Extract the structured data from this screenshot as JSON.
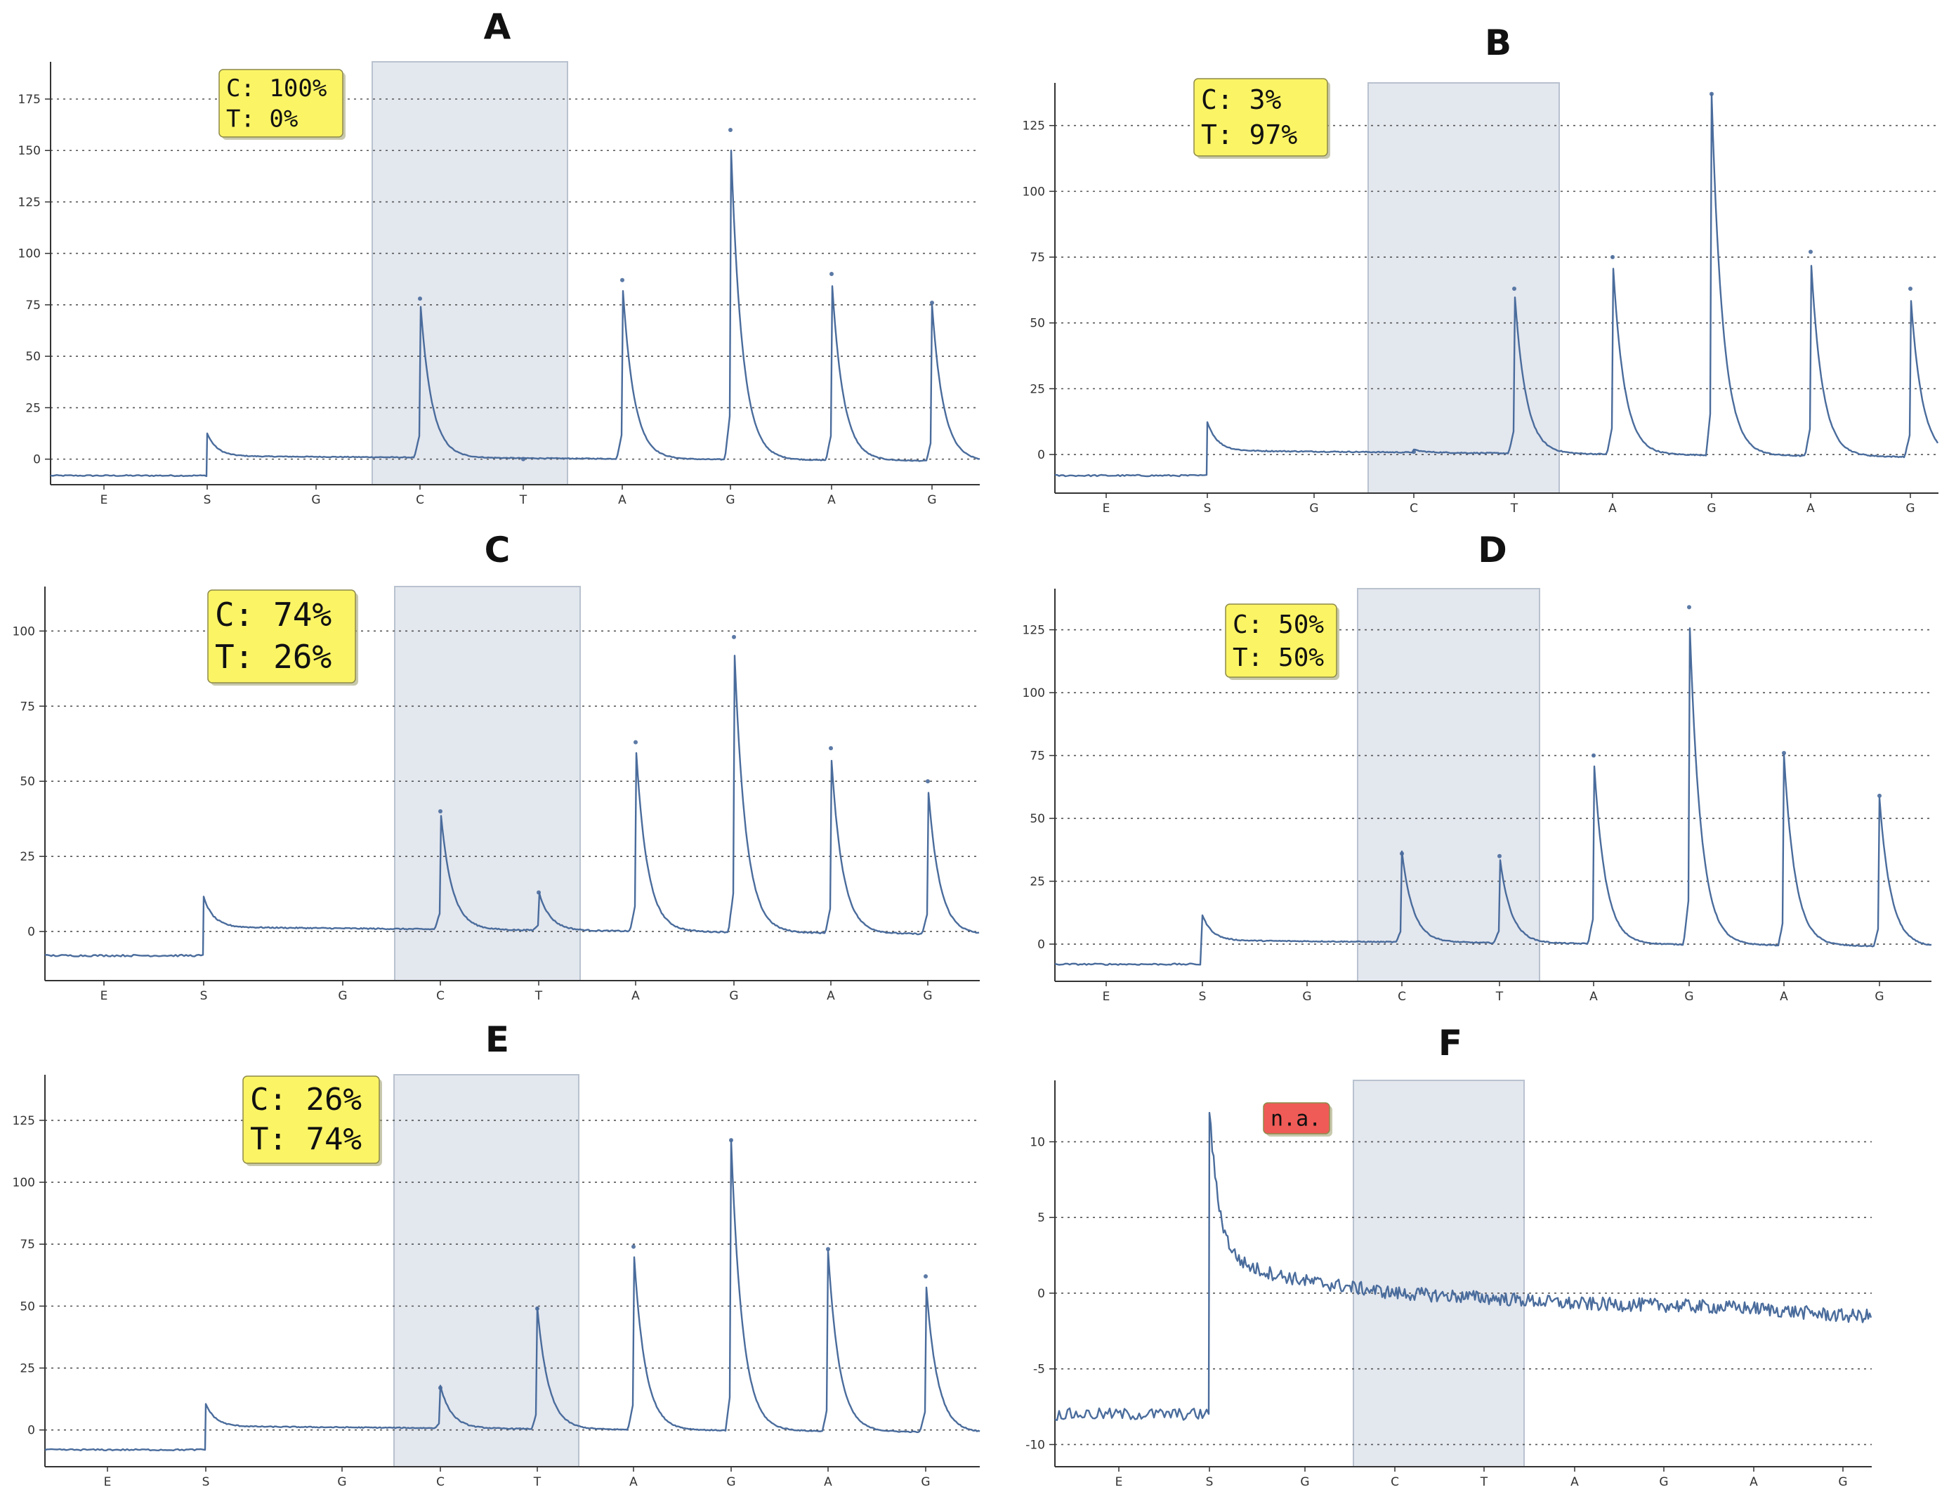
{
  "figure": {
    "style": {
      "trace_color": "#4a6c9c",
      "highlight_fill": "#e3e7ee",
      "highlight_stroke": "#b9c2cf",
      "grid_color": "#555555",
      "badge_yellow": "#fbf465",
      "badge_red": "#ef5b57"
    }
  },
  "chart_data": [
    {
      "type": "line",
      "panel": "A",
      "title": "A",
      "badge": {
        "lines": [
          "C: 100%",
          "T: 0%"
        ],
        "status": "yellow"
      },
      "yticks": [
        0,
        25,
        50,
        75,
        100,
        125,
        150,
        175
      ],
      "ylim": [
        -9,
        189
      ],
      "x_positions": [
        "E",
        "S",
        "G",
        "C",
        "T",
        "A",
        "G",
        "A",
        "G"
      ],
      "highlight": [
        "C",
        "T"
      ],
      "pre_baseline": -8,
      "step_peak": 12,
      "peaks": [
        {
          "base": "C",
          "value": 78
        },
        {
          "base": "T",
          "value": 0
        },
        {
          "base": "A",
          "value": 87
        },
        {
          "base": "G",
          "value": 160
        },
        {
          "base": "A",
          "value": 90
        },
        {
          "base": "G",
          "value": 76
        }
      ]
    },
    {
      "type": "line",
      "panel": "B",
      "title": "B",
      "badge": {
        "lines": [
          "C: 3%",
          "T: 97%"
        ],
        "status": "yellow"
      },
      "yticks": [
        0,
        25,
        50,
        75,
        100,
        125
      ],
      "ylim": [
        -12,
        138
      ],
      "x_positions": [
        "E",
        "S",
        "G",
        "C",
        "T",
        "A",
        "G",
        "A",
        "G"
      ],
      "highlight": [
        "C",
        "T"
      ],
      "pre_baseline": -8,
      "step_peak": 12,
      "peaks": [
        {
          "base": "C",
          "value": 1
        },
        {
          "base": "T",
          "value": 63
        },
        {
          "base": "A",
          "value": 75
        },
        {
          "base": "G",
          "value": 137
        },
        {
          "base": "A",
          "value": 77
        },
        {
          "base": "G",
          "value": 63
        }
      ]
    },
    {
      "type": "line",
      "panel": "C",
      "title": "C",
      "badge": {
        "lines": [
          "C: 74%",
          "T: 26%"
        ],
        "status": "yellow"
      },
      "yticks": [
        0,
        25,
        50,
        75,
        100
      ],
      "ylim": [
        -14,
        112
      ],
      "x_positions": [
        "E",
        "S",
        "G",
        "C",
        "T",
        "A",
        "G",
        "A",
        "G"
      ],
      "highlight": [
        "C",
        "T"
      ],
      "pre_baseline": -8,
      "step_peak": 11,
      "peaks": [
        {
          "base": "C",
          "value": 40
        },
        {
          "base": "T",
          "value": 13
        },
        {
          "base": "A",
          "value": 63
        },
        {
          "base": "G",
          "value": 98
        },
        {
          "base": "A",
          "value": 61
        },
        {
          "base": "G",
          "value": 50
        }
      ]
    },
    {
      "type": "line",
      "panel": "D",
      "title": "D",
      "badge": {
        "lines": [
          "C: 50%",
          "T: 50%"
        ],
        "status": "yellow"
      },
      "yticks": [
        0,
        25,
        50,
        75,
        100,
        125
      ],
      "ylim": [
        -12,
        138
      ],
      "x_positions": [
        "E",
        "S",
        "G",
        "C",
        "T",
        "A",
        "G",
        "A",
        "G"
      ],
      "highlight": [
        "C",
        "T"
      ],
      "pre_baseline": -8,
      "step_peak": 11,
      "peaks": [
        {
          "base": "C",
          "value": 36
        },
        {
          "base": "T",
          "value": 35
        },
        {
          "base": "A",
          "value": 75
        },
        {
          "base": "G",
          "value": 134
        },
        {
          "base": "A",
          "value": 76
        },
        {
          "base": "G",
          "value": 59
        }
      ]
    },
    {
      "type": "line",
      "panel": "E",
      "title": "E",
      "badge": {
        "lines": [
          "C: 26%",
          "T: 74%"
        ],
        "status": "yellow"
      },
      "yticks": [
        0,
        25,
        50,
        75,
        100,
        125
      ],
      "ylim": [
        -12,
        140
      ],
      "x_positions": [
        "E",
        "S",
        "G",
        "C",
        "T",
        "A",
        "G",
        "A",
        "G"
      ],
      "highlight": [
        "C",
        "T"
      ],
      "pre_baseline": -8,
      "step_peak": 10,
      "peaks": [
        {
          "base": "C",
          "value": 17
        },
        {
          "base": "T",
          "value": 49
        },
        {
          "base": "A",
          "value": 74
        },
        {
          "base": "G",
          "value": 117
        },
        {
          "base": "A",
          "value": 73
        },
        {
          "base": "G",
          "value": 62
        }
      ]
    },
    {
      "type": "line",
      "panel": "F",
      "title": "F",
      "badge": {
        "lines": [
          "n.a."
        ],
        "status": "red"
      },
      "yticks": [
        -10,
        -5,
        0,
        5,
        10
      ],
      "ylim": [
        -11,
        13.5
      ],
      "x_positions": [
        "E",
        "S",
        "G",
        "C",
        "T",
        "A",
        "G",
        "A",
        "G"
      ],
      "highlight": [
        "C",
        "T"
      ],
      "pre_baseline": -8,
      "step_peak": 11,
      "noisy": true,
      "trend_after": [
        {
          "at": "S",
          "value": 2.2
        },
        {
          "at": "G",
          "value": 0.8
        },
        {
          "at": "C",
          "value": 0
        },
        {
          "at": "T",
          "value": -0.3
        },
        {
          "at": "A",
          "value": -0.7
        },
        {
          "at": "G",
          "value": -0.8
        },
        {
          "at": "A",
          "value": -1.0
        },
        {
          "at": "G",
          "value": -1.5
        }
      ],
      "peaks": []
    }
  ]
}
